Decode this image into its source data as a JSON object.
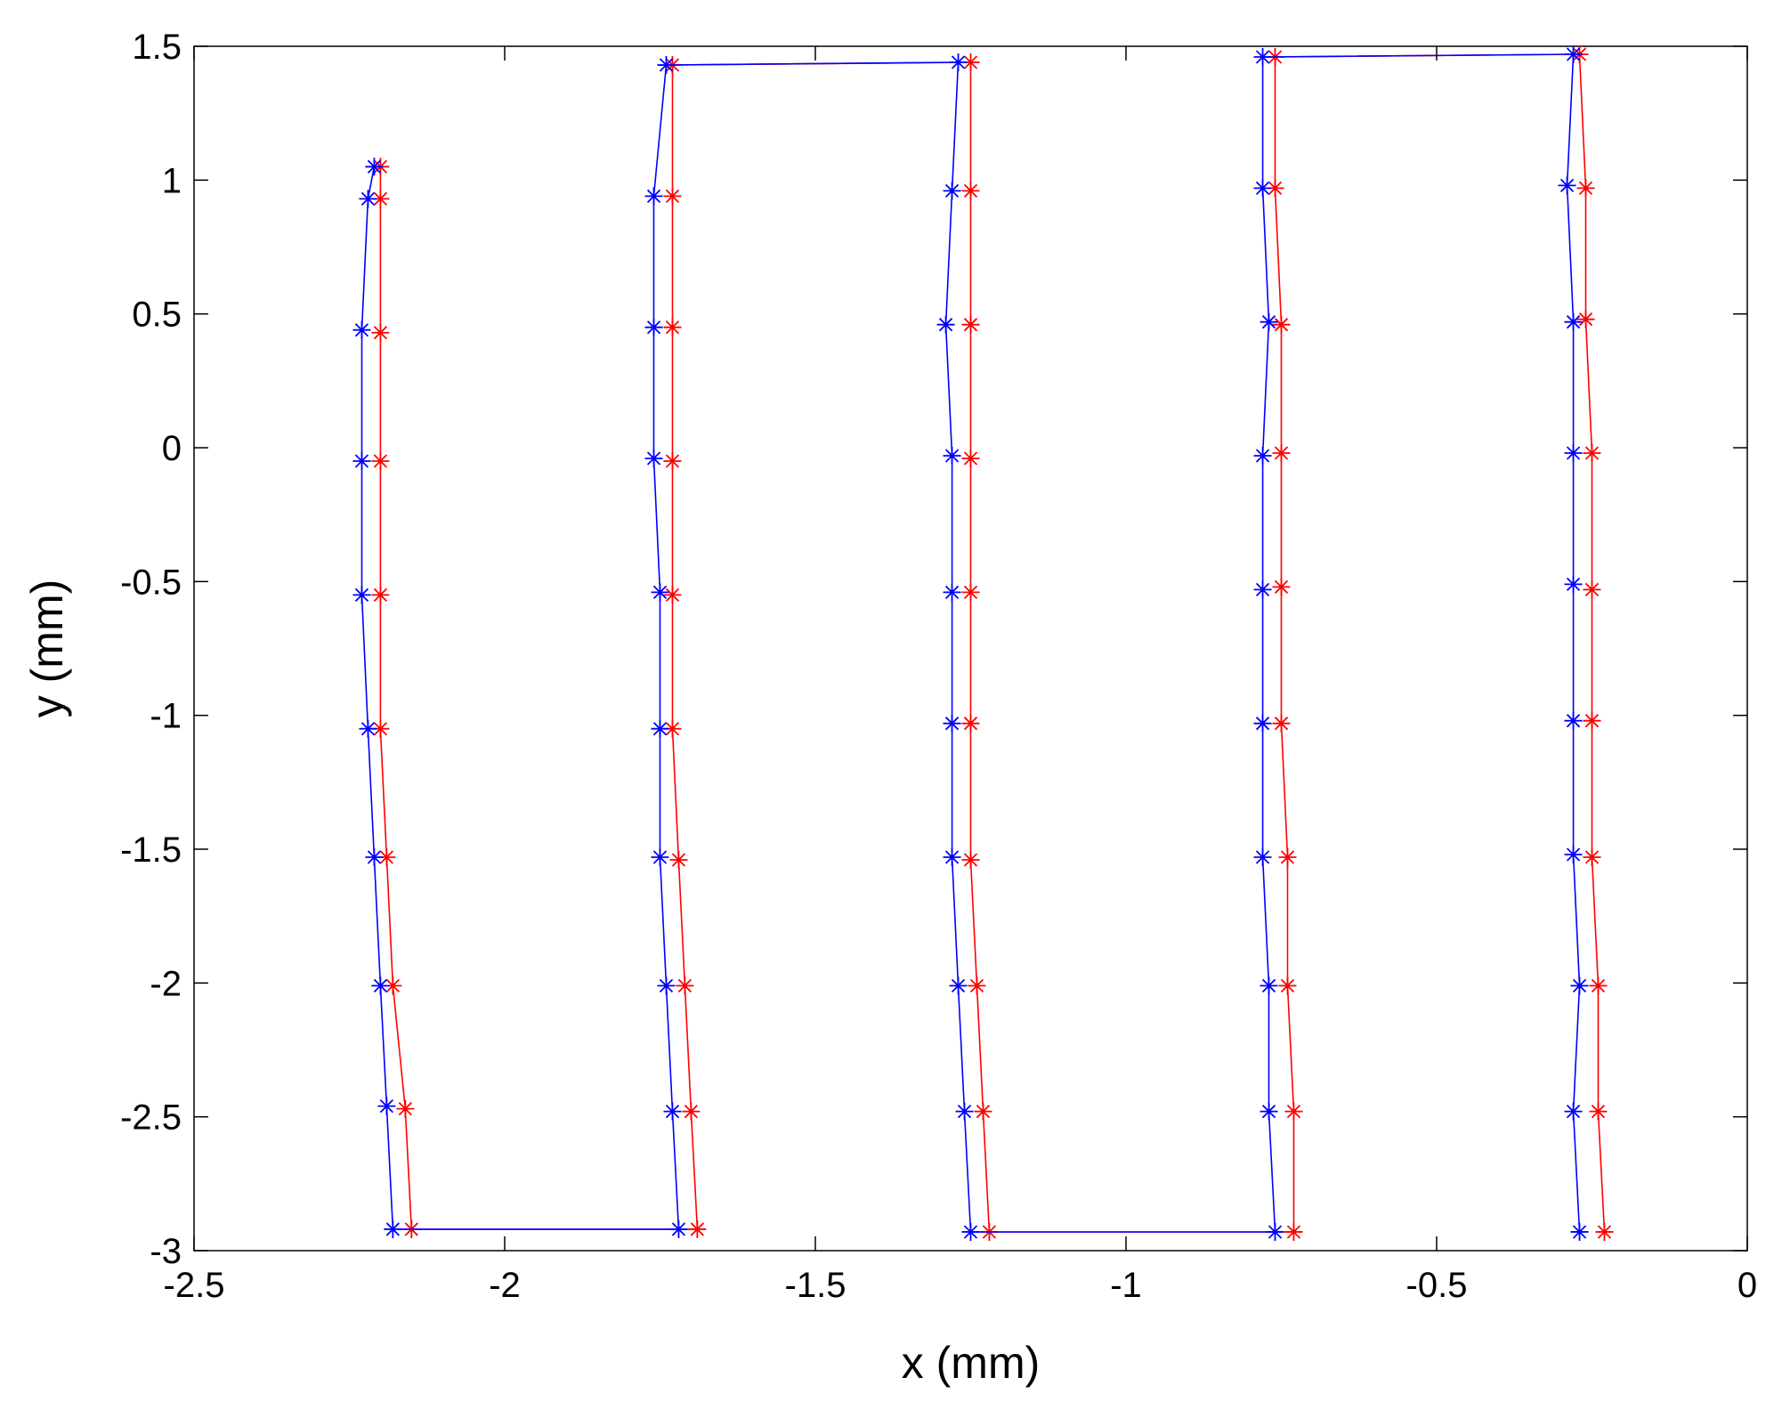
{
  "chart_data": {
    "type": "line",
    "title": "",
    "xlabel": "x (mm)",
    "ylabel": "y (mm)",
    "xlim": [
      -2.5,
      0
    ],
    "ylim": [
      -3,
      1.5
    ],
    "xticks": [
      -2.5,
      -2,
      -1.5,
      -1,
      -0.5,
      0
    ],
    "xtick_labels": [
      "-2.5",
      "-2",
      "-1.5",
      "-1",
      "-0.5",
      "0"
    ],
    "yticks": [
      -3,
      -2.5,
      -2,
      -1.5,
      -1,
      -0.5,
      0,
      0.5,
      1,
      1.5
    ],
    "ytick_labels": [
      "-3",
      "-2.5",
      "-2",
      "-1.5",
      "-1",
      "-0.5",
      "0",
      "0.5",
      "1",
      "1.5"
    ],
    "grid": false,
    "legend": "none",
    "marker": "asterisk",
    "series": [
      {
        "color": "#ff0000",
        "points": [
          [
            -2.2,
            1.05
          ],
          [
            -2.2,
            0.93
          ],
          [
            -2.2,
            0.43
          ],
          [
            -2.2,
            -0.05
          ],
          [
            -2.2,
            -0.55
          ],
          [
            -2.2,
            -1.05
          ],
          [
            -2.19,
            -1.53
          ],
          [
            -2.18,
            -2.01
          ],
          [
            -2.16,
            -2.47
          ],
          [
            -2.15,
            -2.92
          ],
          [
            -1.69,
            -2.92
          ],
          [
            -1.7,
            -2.48
          ],
          [
            -1.71,
            -2.01
          ],
          [
            -1.72,
            -1.54
          ],
          [
            -1.73,
            -1.05
          ],
          [
            -1.73,
            -0.55
          ],
          [
            -1.73,
            -0.05
          ],
          [
            -1.73,
            0.45
          ],
          [
            -1.73,
            0.94
          ],
          [
            -1.73,
            1.43
          ],
          [
            -1.25,
            1.44
          ],
          [
            -1.25,
            0.96
          ],
          [
            -1.25,
            0.46
          ],
          [
            -1.25,
            -0.04
          ],
          [
            -1.25,
            -0.54
          ],
          [
            -1.25,
            -1.03
          ],
          [
            -1.25,
            -1.54
          ],
          [
            -1.24,
            -2.01
          ],
          [
            -1.23,
            -2.48
          ],
          [
            -1.22,
            -2.93
          ],
          [
            -0.73,
            -2.93
          ],
          [
            -0.73,
            -2.48
          ],
          [
            -0.74,
            -2.01
          ],
          [
            -0.74,
            -1.53
          ],
          [
            -0.75,
            -1.03
          ],
          [
            -0.75,
            -0.52
          ],
          [
            -0.75,
            -0.02
          ],
          [
            -0.75,
            0.46
          ],
          [
            -0.76,
            0.97
          ],
          [
            -0.76,
            1.46
          ],
          [
            -0.27,
            1.47
          ],
          [
            -0.26,
            0.97
          ],
          [
            -0.26,
            0.48
          ],
          [
            -0.25,
            -0.02
          ],
          [
            -0.25,
            -0.53
          ],
          [
            -0.25,
            -1.02
          ],
          [
            -0.25,
            -1.53
          ],
          [
            -0.24,
            -2.01
          ],
          [
            -0.24,
            -2.48
          ],
          [
            -0.23,
            -2.93
          ]
        ]
      },
      {
        "color": "#0000ff",
        "points": [
          [
            -2.21,
            1.05
          ],
          [
            -2.22,
            0.93
          ],
          [
            -2.23,
            0.44
          ],
          [
            -2.23,
            -0.05
          ],
          [
            -2.23,
            -0.55
          ],
          [
            -2.22,
            -1.05
          ],
          [
            -2.21,
            -1.53
          ],
          [
            -2.2,
            -2.01
          ],
          [
            -2.19,
            -2.46
          ],
          [
            -2.18,
            -2.92
          ],
          [
            -1.72,
            -2.92
          ],
          [
            -1.73,
            -2.48
          ],
          [
            -1.74,
            -2.01
          ],
          [
            -1.75,
            -1.53
          ],
          [
            -1.75,
            -1.05
          ],
          [
            -1.75,
            -0.54
          ],
          [
            -1.76,
            -0.04
          ],
          [
            -1.76,
            0.45
          ],
          [
            -1.76,
            0.94
          ],
          [
            -1.74,
            1.43
          ],
          [
            -1.27,
            1.44
          ],
          [
            -1.28,
            0.96
          ],
          [
            -1.29,
            0.46
          ],
          [
            -1.28,
            -0.03
          ],
          [
            -1.28,
            -0.54
          ],
          [
            -1.28,
            -1.03
          ],
          [
            -1.28,
            -1.53
          ],
          [
            -1.27,
            -2.01
          ],
          [
            -1.26,
            -2.48
          ],
          [
            -1.25,
            -2.93
          ],
          [
            -0.76,
            -2.93
          ],
          [
            -0.77,
            -2.48
          ],
          [
            -0.77,
            -2.01
          ],
          [
            -0.78,
            -1.53
          ],
          [
            -0.78,
            -1.03
          ],
          [
            -0.78,
            -0.53
          ],
          [
            -0.78,
            -0.03
          ],
          [
            -0.77,
            0.47
          ],
          [
            -0.78,
            0.97
          ],
          [
            -0.78,
            1.46
          ],
          [
            -0.28,
            1.47
          ],
          [
            -0.29,
            0.98
          ],
          [
            -0.28,
            0.47
          ],
          [
            -0.28,
            -0.02
          ],
          [
            -0.28,
            -0.51
          ],
          [
            -0.28,
            -1.02
          ],
          [
            -0.28,
            -1.52
          ],
          [
            -0.27,
            -2.01
          ],
          [
            -0.28,
            -2.48
          ],
          [
            -0.27,
            -2.93
          ]
        ]
      }
    ]
  }
}
